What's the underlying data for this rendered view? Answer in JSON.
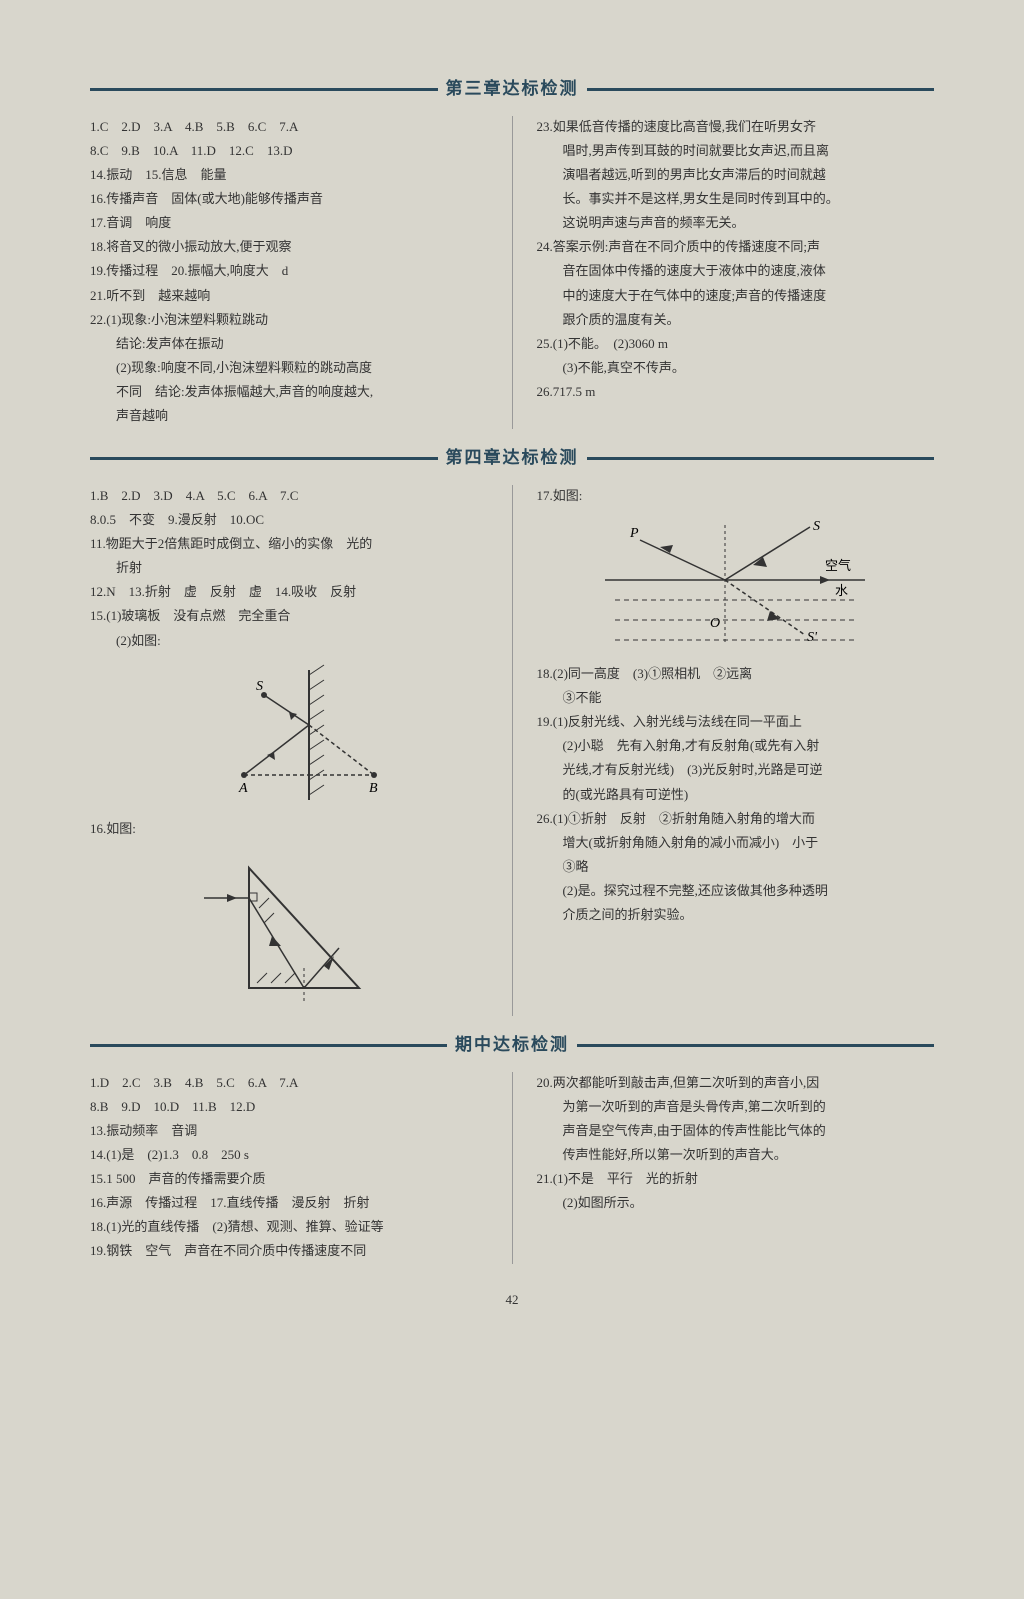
{
  "section1": {
    "title": "第三章达标检测",
    "left": [
      "1.C　2.D　3.A　4.B　5.B　6.C　7.A",
      "8.C　9.B　10.A　11.D　12.C　13.D",
      "14.振动　15.信息　能量",
      "16.传播声音　固体(或大地)能够传播声音",
      "17.音调　响度",
      "18.将音叉的微小振动放大,便于观察",
      "19.传播过程　20.振幅大,响度大　d",
      "21.听不到　越来越响",
      "22.(1)现象:小泡沫塑料颗粒跳动",
      "　　结论:发声体在振动",
      "　　(2)现象:响度不同,小泡沫塑料颗粒的跳动高度",
      "　　不同　结论:发声体振幅越大,声音的响度越大,",
      "　　声音越响"
    ],
    "right": [
      "23.如果低音传播的速度比高音慢,我们在听男女齐",
      "　　唱时,男声传到耳鼓的时间就要比女声迟,而且离",
      "　　演唱者越远,听到的男声比女声滞后的时间就越",
      "　　长。事实并不是这样,男女生是同时传到耳中的。",
      "　　这说明声速与声音的频率无关。",
      "24.答案示例:声音在不同介质中的传播速度不同;声",
      "　　音在固体中传播的速度大于液体中的速度,液体",
      "　　中的速度大于在气体中的速度;声音的传播速度",
      "　　跟介质的温度有关。",
      "25.(1)不能。　(2)3060 m",
      "　　(3)不能,真空不传声。",
      "26.717.5 m"
    ]
  },
  "section2": {
    "title": "第四章达标检测",
    "left": [
      "1.B　2.D　3.D　4.A　5.C　6.A　7.C",
      "8.0.5　不变　9.漫反射　10.OC",
      "11.物距大于2倍焦距时成倒立、缩小的实像　光的",
      "　　折射",
      "12.N　13.折射　虚　反射　虚　14.吸收　反射",
      "15.(1)玻璃板　没有点燃　完全重合",
      "　　(2)如图:"
    ],
    "left2": [
      "16.如图:"
    ],
    "right1": [
      "17.如图:"
    ],
    "right2": [
      "18.(2)同一高度　(3)①照相机　②远离",
      "　　③不能",
      "19.(1)反射光线、入射光线与法线在同一平面上",
      "　　(2)小聪　先有入射角,才有反射角(或先有入射",
      "　　光线,才有反射光线)　(3)光反射时,光路是可逆",
      "　　的(或光路具有可逆性)",
      "26.(1)①折射　反射　②折射角随入射角的增大而",
      "　　增大(或折射角随入射角的减小而减小)　小于",
      "　　③略",
      "　　(2)是。探究过程不完整,还应该做其他多种透明",
      "　　介质之间的折射实验。"
    ],
    "diagram17_labels": {
      "P": "P",
      "S": "S",
      "O": "O",
      "S2": "S'",
      "air": "空气",
      "water": "水"
    },
    "diagram15_labels": {
      "S": "S",
      "A": "A",
      "B": "B"
    }
  },
  "section3": {
    "title": "期中达标检测",
    "left": [
      "1.D　2.C　3.B　4.B　5.C　6.A　7.A",
      "8.B　9.D　10.D　11.B　12.D",
      "13.振动频率　音调",
      "14.(1)是　(2)1.3　0.8　250 s",
      "15.1 500　声音的传播需要介质",
      "16.声源　传播过程　17.直线传播　漫反射　折射",
      "18.(1)光的直线传播　(2)猜想、观测、推算、验证等",
      "19.钢铁　空气　声音在不同介质中传播速度不同"
    ],
    "right": [
      "20.两次都能听到敲击声,但第二次听到的声音小,因",
      "　　为第一次听到的声音是头骨传声,第二次听到的",
      "　　声音是空气传声,由于固体的传声性能比气体的",
      "　　传声性能好,所以第一次听到的声音大。",
      "21.(1)不是　平行　光的折射",
      "　　(2)如图所示。"
    ]
  },
  "pageNumber": "42",
  "colors": {
    "header": "#2a4a5c",
    "line": "#333",
    "dash": "#555"
  }
}
